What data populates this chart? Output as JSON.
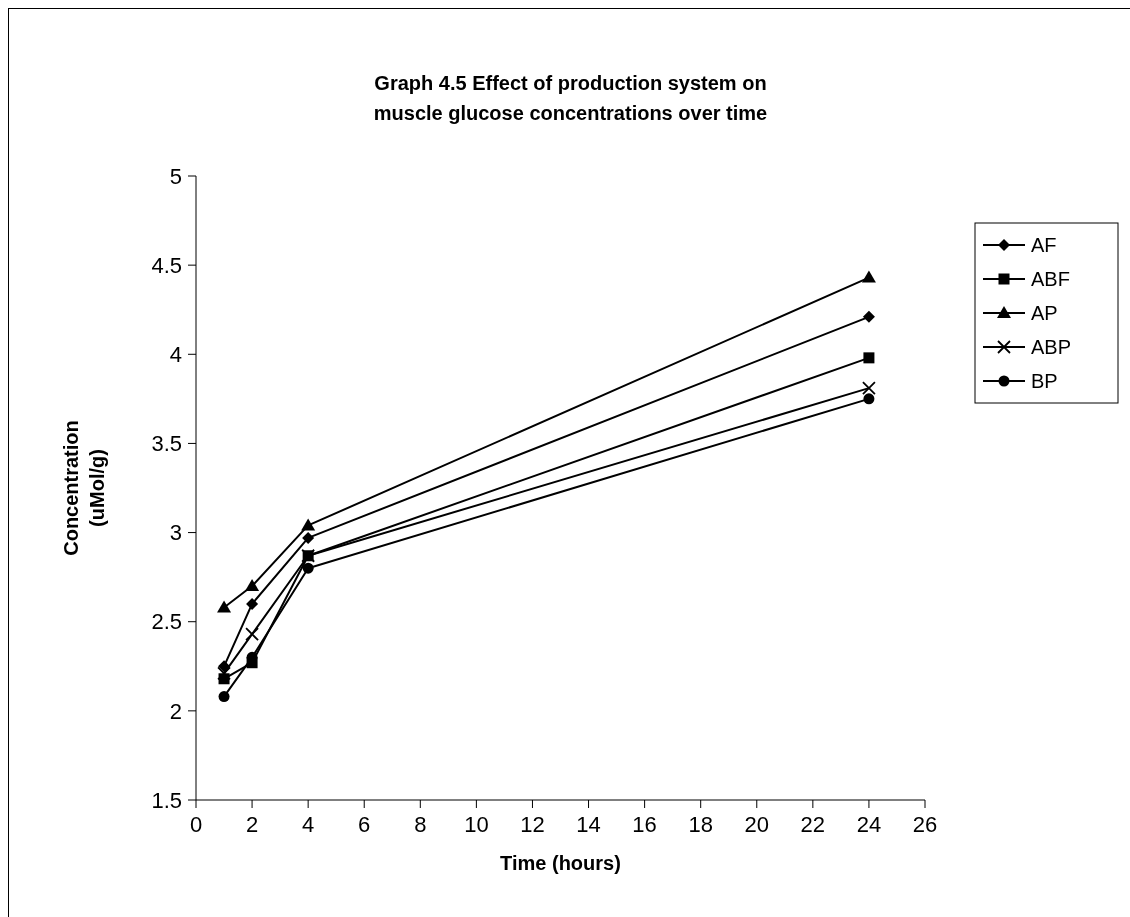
{
  "chart_data": {
    "type": "line",
    "title": "Graph 4.5 Effect of production system on\nmuscle glucose concentrations over time",
    "xlabel": "Time (hours)",
    "ylabel": "Concentration\n(uMol/g)",
    "x": [
      1,
      2,
      4,
      24
    ],
    "xlim": [
      0,
      26
    ],
    "xticks": [
      0,
      2,
      4,
      6,
      8,
      10,
      12,
      14,
      16,
      18,
      20,
      22,
      24,
      26
    ],
    "ylim": [
      1.5,
      5
    ],
    "yticks": [
      1.5,
      2,
      2.5,
      3,
      3.5,
      4,
      4.5,
      5
    ],
    "grid": false,
    "legend": "right",
    "line_style": "solid",
    "series": [
      {
        "name": "AF",
        "color": "#000000",
        "marker": "diamond",
        "values": [
          2.25,
          2.6,
          2.97,
          4.21
        ]
      },
      {
        "name": "ABF",
        "color": "#000000",
        "marker": "square",
        "values": [
          2.18,
          2.27,
          2.87,
          3.98
        ]
      },
      {
        "name": "AP",
        "color": "#000000",
        "marker": "triangle",
        "values": [
          2.58,
          2.7,
          3.04,
          4.43
        ]
      },
      {
        "name": "ABP",
        "color": "#000000",
        "marker": "cross",
        "values": [
          2.21,
          2.43,
          2.87,
          3.81
        ]
      },
      {
        "name": "BP",
        "color": "#000000",
        "marker": "circle",
        "values": [
          2.08,
          2.3,
          2.8,
          3.75
        ]
      }
    ]
  }
}
